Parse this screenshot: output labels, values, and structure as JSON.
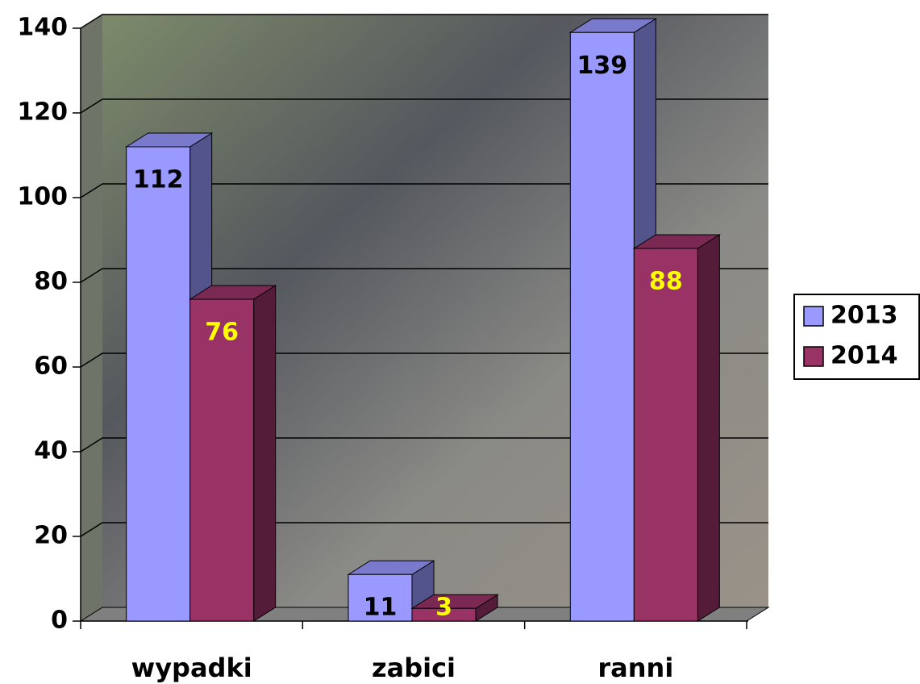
{
  "chart_data": {
    "type": "bar3d",
    "categories": [
      "wypadki",
      "zabici",
      "ranni"
    ],
    "series": [
      {
        "name": "2013",
        "color": "#9999ff",
        "label_color": "#000000",
        "values": [
          112,
          11,
          139
        ]
      },
      {
        "name": "2014",
        "color": "#993366",
        "label_color": "#ffff00",
        "values": [
          76,
          3,
          88
        ]
      }
    ],
    "ylim": [
      0,
      140
    ],
    "yticks": [
      0,
      20,
      40,
      60,
      80,
      100,
      120,
      140
    ],
    "grid": true,
    "legend": "right"
  }
}
